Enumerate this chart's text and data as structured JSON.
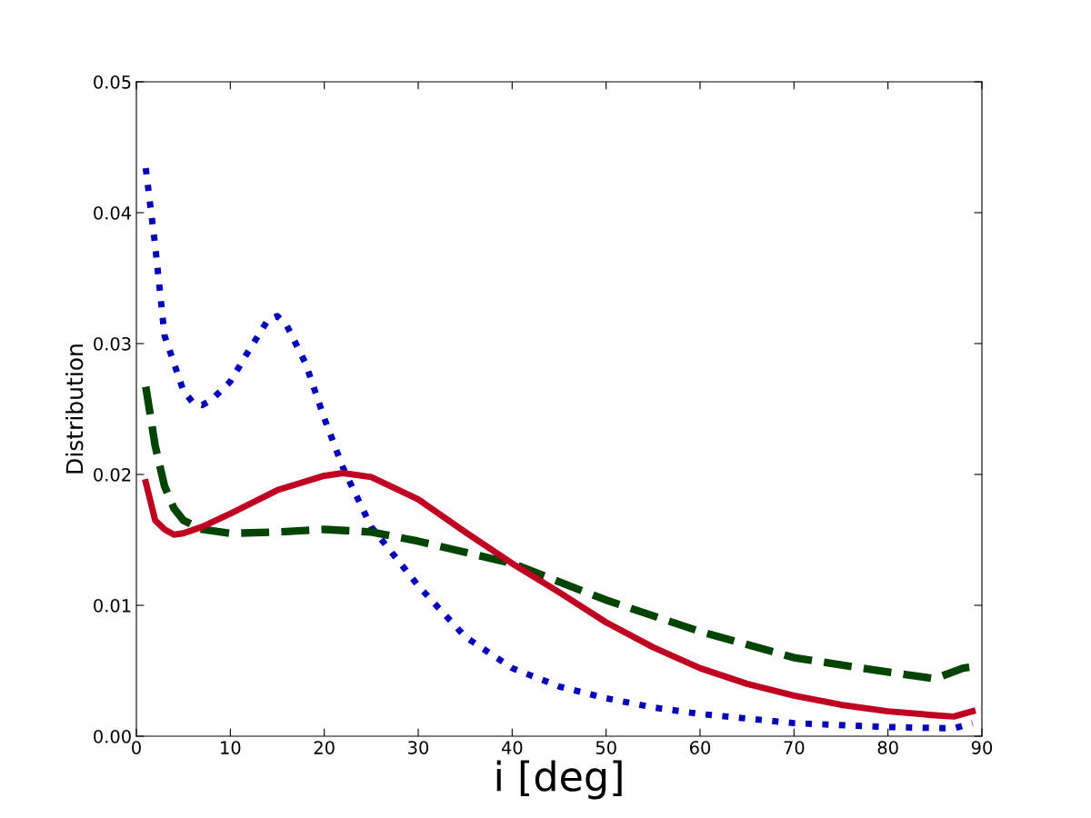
{
  "chart_data": {
    "type": "line",
    "xlabel": "i [deg]",
    "ylabel": "Distribution",
    "xlim": [
      0,
      90
    ],
    "ylim": [
      0,
      0.05
    ],
    "xticks": [
      0,
      10,
      20,
      30,
      40,
      50,
      60,
      70,
      80,
      90
    ],
    "yticks": [
      {
        "value": 0,
        "label": "0.00"
      },
      {
        "value": 0.01,
        "label": "0.01"
      },
      {
        "value": 0.02,
        "label": "0.02"
      },
      {
        "value": 0.03,
        "label": "0.03"
      },
      {
        "value": 0.04,
        "label": "0.04"
      },
      {
        "value": 0.05,
        "label": "0.05"
      }
    ],
    "grid": false,
    "legend": false,
    "series": [
      {
        "color": "#0000bb",
        "line_style": "dotted",
        "x": [
          1,
          2,
          3,
          4,
          5,
          6,
          7,
          8,
          10,
          12,
          14,
          15,
          16,
          18,
          20,
          22,
          25,
          30,
          35,
          40,
          45,
          50,
          55,
          60,
          70,
          80,
          87,
          89
        ],
        "values": [
          0.0434,
          0.0375,
          0.0306,
          0.0285,
          0.0264,
          0.0255,
          0.0253,
          0.0257,
          0.0271,
          0.0295,
          0.0318,
          0.0321,
          0.0314,
          0.0285,
          0.0243,
          0.0205,
          0.016,
          0.0115,
          0.0076,
          0.0052,
          0.0038,
          0.0029,
          0.0022,
          0.0017,
          0.001,
          0.0007,
          0.0006,
          0.001
        ]
      },
      {
        "color": "#004400",
        "line_style": "dashed",
        "x": [
          1,
          2,
          3,
          4,
          5,
          7,
          10,
          15,
          20,
          25,
          30,
          40,
          50,
          60,
          70,
          80,
          85,
          88,
          89
        ],
        "values": [
          0.0267,
          0.0222,
          0.0191,
          0.0174,
          0.0165,
          0.0158,
          0.0155,
          0.0156,
          0.0158,
          0.0156,
          0.0149,
          0.0132,
          0.0104,
          0.008,
          0.006,
          0.0049,
          0.0044,
          0.0052,
          0.0053
        ]
      },
      {
        "color": "#c00020",
        "line_style": "solid",
        "x": [
          1,
          2,
          3,
          4,
          5,
          7,
          10,
          15,
          20,
          22,
          25,
          30,
          35,
          40,
          45,
          50,
          55,
          60,
          65,
          70,
          75,
          80,
          85,
          87,
          89
        ],
        "values": [
          0.0194,
          0.0165,
          0.0158,
          0.0154,
          0.0155,
          0.016,
          0.017,
          0.0188,
          0.0199,
          0.0201,
          0.0198,
          0.0181,
          0.0156,
          0.0132,
          0.011,
          0.0087,
          0.0068,
          0.0052,
          0.004,
          0.0031,
          0.0024,
          0.0019,
          0.0016,
          0.0015,
          0.0019
        ]
      }
    ]
  }
}
